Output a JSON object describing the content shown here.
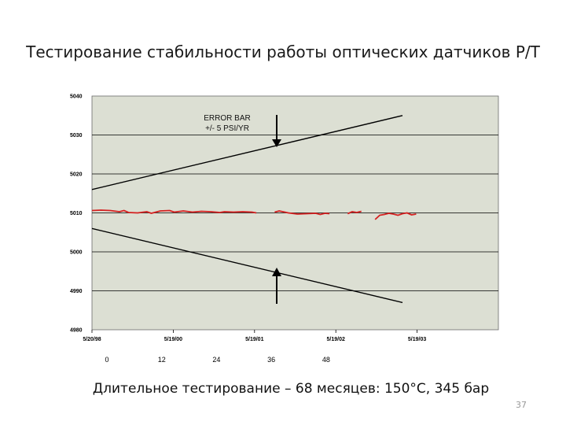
{
  "slide": {
    "title": "Тестирование стабильности работы оптических датчиков P/T",
    "caption": "Длительное тестирование – 68 месяцев: 150°С, 345 бар",
    "page_number": "37"
  },
  "colors": {
    "plot_background": "#dcdfd3",
    "measured_line": "#d42020",
    "error_bar_line": "#000000"
  },
  "chart_data": {
    "type": "line",
    "title": "",
    "xlabel": "",
    "ylabel": "",
    "ylim": [
      4980,
      5040
    ],
    "y_ticks": [
      "5040",
      "5030",
      "5020",
      "5010",
      "5000",
      "4990",
      "4980"
    ],
    "x_tick_labels": [
      "5/20/98",
      "5/19/00",
      "5/19/01",
      "5/19/02",
      "5/19/03"
    ],
    "x_month_labels": [
      "0",
      "12",
      "24",
      "36",
      "48"
    ],
    "grid": true,
    "annotation": {
      "line1": "ERROR BAR",
      "line2": "+/- 5 PSI/YR"
    },
    "series": [
      {
        "role": "error-bar-upper",
        "points": [
          [
            0,
            5016
          ],
          [
            68,
            5035
          ]
        ]
      },
      {
        "role": "error-bar-lower",
        "points": [
          [
            0,
            5006
          ],
          [
            68,
            4987
          ]
        ]
      },
      {
        "role": "measured",
        "segments": [
          [
            [
              0,
              5010.6
            ],
            [
              2,
              5010.7
            ],
            [
              4,
              5010.6
            ],
            [
              6,
              5010.3
            ],
            [
              7,
              5010.6
            ],
            [
              8,
              5010.1
            ],
            [
              10,
              5010.0
            ],
            [
              12,
              5010.3
            ],
            [
              13,
              5009.9
            ],
            [
              15,
              5010.5
            ],
            [
              17,
              5010.6
            ],
            [
              18,
              5010.2
            ],
            [
              20,
              5010.5
            ],
            [
              22,
              5010.2
            ],
            [
              24,
              5010.4
            ],
            [
              26,
              5010.3
            ],
            [
              28,
              5010.1
            ],
            [
              29,
              5010.3
            ],
            [
              31,
              5010.2
            ],
            [
              33,
              5010.3
            ],
            [
              35,
              5010.2
            ],
            [
              36,
              5010.0
            ]
          ],
          [
            [
              40,
              5010.2
            ],
            [
              41,
              5010.5
            ],
            [
              43,
              5010.0
            ],
            [
              45,
              5009.7
            ],
            [
              47,
              5009.8
            ],
            [
              49,
              5009.9
            ],
            [
              50,
              5009.6
            ],
            [
              51,
              5009.9
            ],
            [
              52,
              5009.8
            ]
          ],
          [
            [
              56,
              5009.8
            ],
            [
              57,
              5010.3
            ],
            [
              58,
              5010.1
            ],
            [
              59,
              5010.4
            ]
          ],
          [
            [
              62,
              5008.3
            ],
            [
              63,
              5009.4
            ],
            [
              64,
              5009.6
            ],
            [
              65,
              5009.9
            ],
            [
              66,
              5009.7
            ],
            [
              67,
              5009.4
            ],
            [
              68,
              5009.8
            ],
            [
              69,
              5010.0
            ],
            [
              70,
              5009.5
            ],
            [
              71,
              5009.7
            ]
          ]
        ]
      }
    ]
  }
}
